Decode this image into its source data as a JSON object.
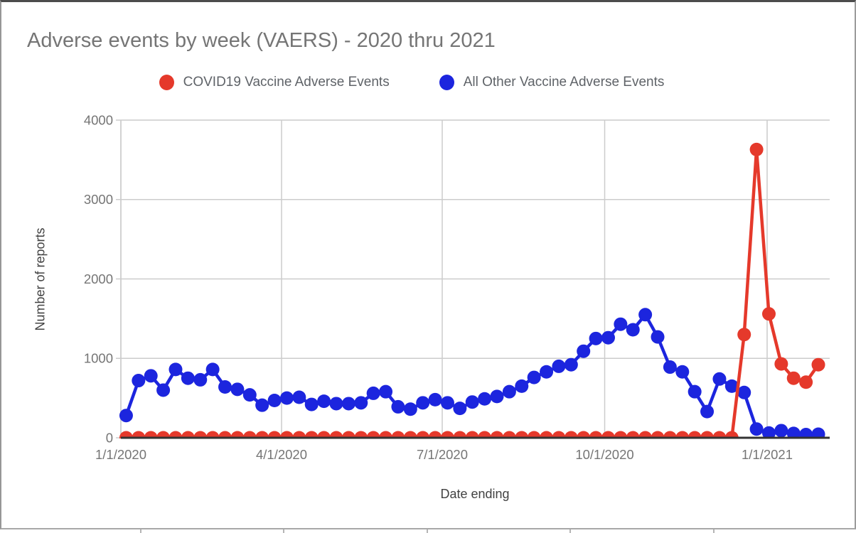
{
  "title": "Adverse events by week (VAERS) - 2020 thru 2021",
  "legend": [
    {
      "label": "COVID19 Vaccine Adverse Events",
      "color": "#e5392b"
    },
    {
      "label": "All Other Vaccine Adverse Events",
      "color": "#1c25de"
    }
  ],
  "chart_data": {
    "type": "line",
    "title": "Adverse events by week (VAERS) - 2020 thru 2021",
    "xlabel": "Date ending",
    "ylabel": "Number of reports",
    "ylim": [
      0,
      4000
    ],
    "y_ticks": [
      0,
      1000,
      2000,
      3000,
      4000
    ],
    "x_tick_labels": [
      "1/1/2020",
      "4/1/2020",
      "7/1/2020",
      "10/1/2020",
      "1/1/2021"
    ],
    "grid": true,
    "legend_position": "top",
    "x": [
      "1/4/2020",
      "1/11/2020",
      "1/18/2020",
      "1/25/2020",
      "2/1/2020",
      "2/8/2020",
      "2/15/2020",
      "2/22/2020",
      "2/29/2020",
      "3/7/2020",
      "3/14/2020",
      "3/21/2020",
      "3/28/2020",
      "4/4/2020",
      "4/11/2020",
      "4/18/2020",
      "4/25/2020",
      "5/2/2020",
      "5/9/2020",
      "5/16/2020",
      "5/23/2020",
      "5/30/2020",
      "6/6/2020",
      "6/13/2020",
      "6/20/2020",
      "6/27/2020",
      "7/4/2020",
      "7/11/2020",
      "7/18/2020",
      "7/25/2020",
      "8/1/2020",
      "8/8/2020",
      "8/15/2020",
      "8/22/2020",
      "8/29/2020",
      "9/5/2020",
      "9/12/2020",
      "9/19/2020",
      "9/26/2020",
      "10/3/2020",
      "10/10/2020",
      "10/17/2020",
      "10/24/2020",
      "10/31/2020",
      "11/7/2020",
      "11/14/2020",
      "11/21/2020",
      "11/28/2020",
      "12/5/2020",
      "12/12/2020",
      "12/19/2020",
      "12/26/2020",
      "1/2/2021",
      "1/9/2021",
      "1/16/2021",
      "1/23/2021",
      "1/30/2021"
    ],
    "series": [
      {
        "name": "All Other Vaccine Adverse Events",
        "color": "#1c25de",
        "values": [
          280,
          720,
          780,
          600,
          860,
          750,
          730,
          860,
          640,
          610,
          540,
          410,
          470,
          500,
          510,
          420,
          460,
          430,
          430,
          440,
          560,
          580,
          390,
          360,
          440,
          480,
          440,
          370,
          450,
          490,
          520,
          580,
          650,
          760,
          830,
          900,
          920,
          1090,
          1250,
          1260,
          1430,
          1360,
          1550,
          1270,
          890,
          830,
          580,
          330,
          740,
          650,
          570,
          110,
          60,
          90,
          55,
          40,
          45
        ]
      },
      {
        "name": "COVID19 Vaccine Adverse Events",
        "color": "#e5392b",
        "values": [
          0,
          0,
          0,
          0,
          0,
          0,
          0,
          0,
          0,
          0,
          0,
          0,
          0,
          0,
          0,
          0,
          0,
          0,
          0,
          0,
          0,
          0,
          0,
          0,
          0,
          0,
          0,
          0,
          0,
          0,
          0,
          0,
          0,
          0,
          0,
          0,
          0,
          0,
          0,
          0,
          0,
          0,
          0,
          0,
          0,
          0,
          0,
          0,
          0,
          0,
          1300,
          3630,
          1560,
          930,
          750,
          700,
          920
        ]
      }
    ]
  }
}
